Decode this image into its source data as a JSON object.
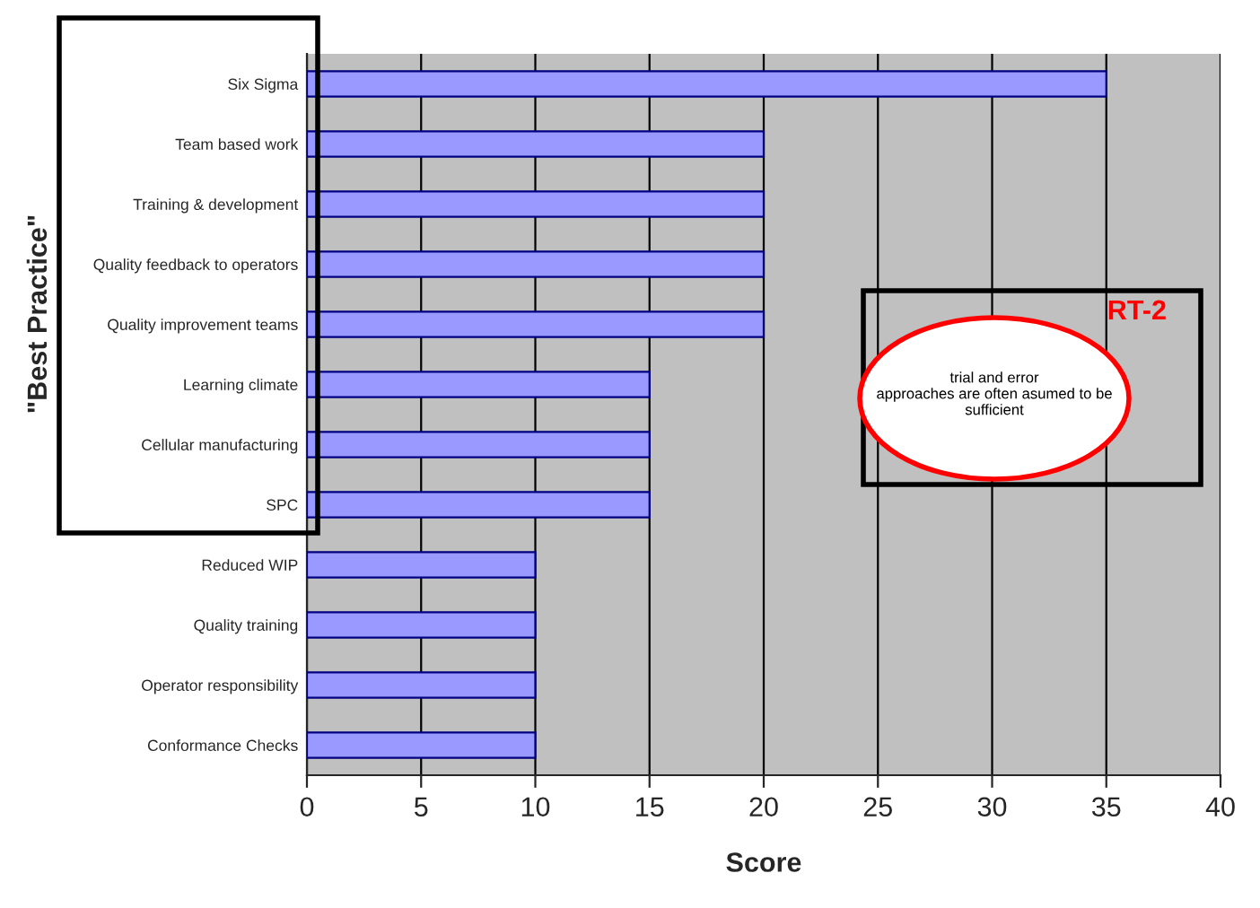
{
  "chart_data": {
    "type": "bar",
    "orientation": "horizontal",
    "xlabel": "Score",
    "ylabel": "\"Best Practice\"",
    "categories": [
      "Six Sigma",
      "Team based work",
      "Training & development",
      "Quality feedback to operators",
      "Quality improvement teams",
      "Learning climate",
      "Cellular manufacturing",
      "SPC",
      "Reduced WIP",
      "Quality training",
      "Operator responsibility",
      "Conformance Checks"
    ],
    "values": [
      35,
      20,
      20,
      20,
      20,
      15,
      15,
      15,
      10,
      10,
      10,
      10
    ],
    "color": "#9999ff",
    "xlim": [
      0,
      40
    ],
    "xticks": [
      0,
      5,
      10,
      15,
      20,
      25,
      30,
      35,
      40
    ],
    "grid": "x",
    "annotations": [
      "RT-2",
      "trial and error\napproaches are often asumed to be\nsufficient"
    ]
  }
}
